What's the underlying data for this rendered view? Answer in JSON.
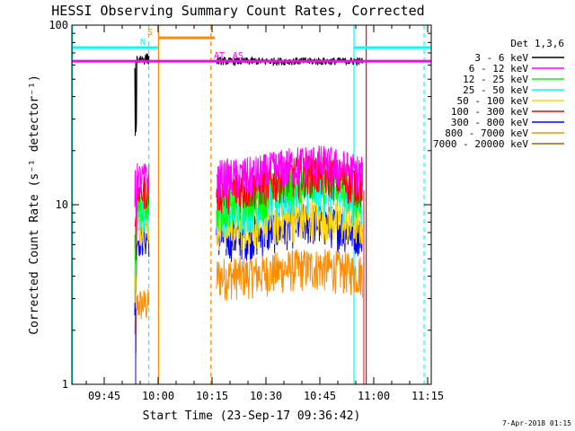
{
  "chart_data": {
    "type": "line",
    "title": "HESSI Observing Summary Count Rates, Corrected",
    "xlabel": "Start Time (23-Sep-17 09:36:42)",
    "ylabel": "Corrected Count Rate (s⁻¹ detector⁻¹)",
    "y_scale": "log",
    "ylim": [
      1,
      100
    ],
    "yticks": [
      "1",
      "10",
      "100"
    ],
    "xlim_minutes": [
      -0.7,
      99.3
    ],
    "xticks": [
      {
        "label": "09:45",
        "minutes": 8.3
      },
      {
        "label": "10:00",
        "minutes": 23.3
      },
      {
        "label": "10:15",
        "minutes": 38.3
      },
      {
        "label": "10:30",
        "minutes": 53.3
      },
      {
        "label": "10:45",
        "minutes": 68.3
      },
      {
        "label": "11:00",
        "minutes": 83.3
      },
      {
        "label": "11:15",
        "minutes": 98.3
      }
    ],
    "legend_title": "Det 1,3,6",
    "legend_position": "right, outside plot",
    "series": [
      {
        "name": "3 - 6 keV",
        "color": "#000000",
        "level_left": 65,
        "level_right": 63,
        "base": 63,
        "peak": 0
      },
      {
        "name": "6 - 12 keV",
        "color": "#ff00ff",
        "level_left": 14,
        "level_right": 14,
        "base": 14,
        "peak": 3
      },
      {
        "name": "12 - 25 keV",
        "color": "#00ff00",
        "level_left": 10,
        "level_right": 10,
        "base": 10,
        "peak": 4
      },
      {
        "name": "25 - 50 keV",
        "color": "#00ffff",
        "level_left": 9,
        "level_right": 9,
        "base": 9,
        "peak": 3
      },
      {
        "name": "50 - 100 keV",
        "color": "#ffd700",
        "level_left": 7.5,
        "level_right": 7.5,
        "base": 7.5,
        "peak": 1
      },
      {
        "name": "100 - 300 keV",
        "color": "#ff0000",
        "level_left": 12,
        "level_right": 12,
        "base": 12,
        "peak": 3
      },
      {
        "name": "300 - 800 keV",
        "color": "#0000ff",
        "level_left": 6.5,
        "level_right": 6.5,
        "base": 6.5,
        "peak": 1.5
      },
      {
        "name": "800 - 7000 keV",
        "color": "#ff8c00",
        "level_left": 2.8,
        "level_right": 3.2,
        "base": 4.0,
        "peak": 0.5
      },
      {
        "name": "7000 - 20000 keV",
        "color": "#8b6914",
        "level_left": 0,
        "level_right": 0,
        "base": 0,
        "peak": 0
      }
    ],
    "data_intervals_minutes": [
      [
        16.8,
        20.8
      ],
      [
        39.5,
        80.3
      ]
    ],
    "flag_bars": [
      {
        "label": "S",
        "color": "#ff8c00",
        "y": 85,
        "x_start": 23.3,
        "x_end": 39.0
      },
      {
        "label": "N",
        "color": "#00ffff",
        "y": 75,
        "x_start": -0.7,
        "x_end": 23.3
      },
      {
        "label": "",
        "color": "#00ffff",
        "y": 75,
        "x_start": 77.8,
        "x_end": 99.3
      },
      {
        "label": "AT",
        "color": "#ff00ff",
        "y": 63,
        "x_start": -0.7,
        "x_end": 99.3
      }
    ],
    "vertical_markers": [
      {
        "minutes": -0.5,
        "color": "#00ffff",
        "style": "solid"
      },
      {
        "minutes": 20.7,
        "color": "#00ffff",
        "style": "dashed"
      },
      {
        "minutes": 23.4,
        "color": "#ff8c00",
        "style": "solid"
      },
      {
        "minutes": 38.0,
        "color": "#ff8c00",
        "style": "dashed"
      },
      {
        "minutes": 77.8,
        "color": "#00ffff",
        "style": "solid"
      },
      {
        "minutes": 81.2,
        "color": "#ff0000",
        "style": "solid"
      },
      {
        "minutes": 97.3,
        "color": "#00ffff",
        "style": "dashed"
      }
    ],
    "annotations": [
      "S",
      "N",
      "AT",
      "AS"
    ],
    "grid": false
  },
  "footer_date": "7-Apr-2018 01:15"
}
